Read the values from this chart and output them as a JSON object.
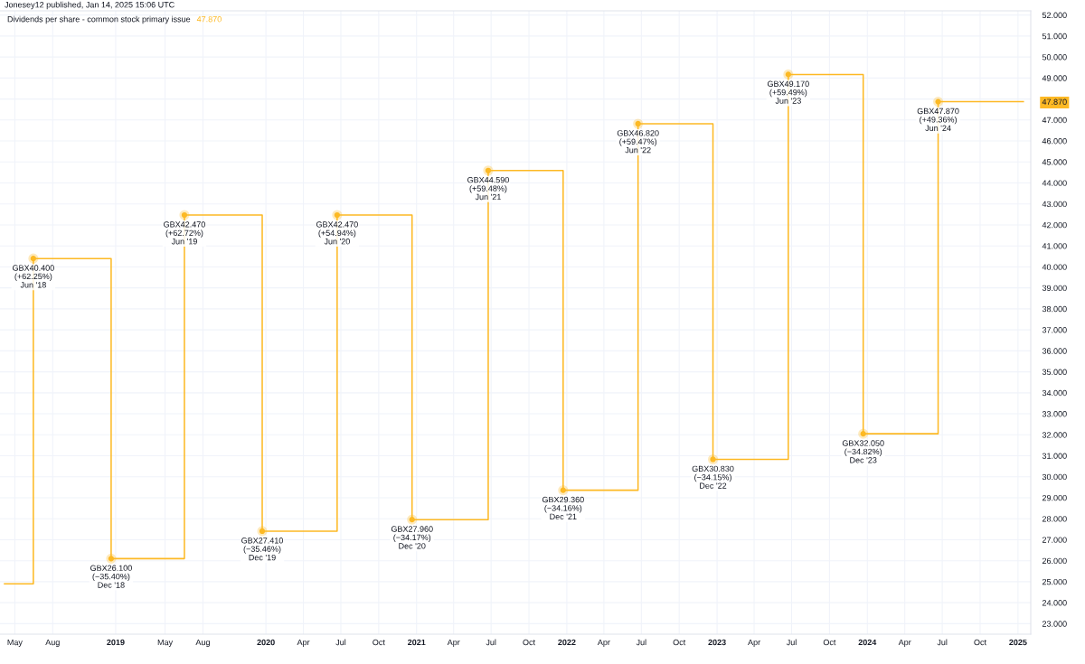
{
  "chart_data": {
    "type": "step",
    "title": "Dividends per share - common stock primary issue",
    "subtitle": "47.870",
    "annotations": [
      "Jonesey12 published, Jan 14, 2025 15:06 UTC"
    ],
    "series": [
      {
        "color": "#fdb924",
        "line_style": "solid",
        "x": [
          "2018-04-06",
          "2018-06-15",
          "2018-12-21",
          "2019-06-17",
          "2019-12-23",
          "2020-06-22",
          "2020-12-21",
          "2021-06-24",
          "2021-12-23",
          "2022-06-23",
          "2022-12-22",
          "2023-06-23",
          "2023-12-22",
          "2024-06-21",
          "2025-01-14"
        ],
        "values": [
          24.9,
          40.4,
          26.1,
          42.47,
          27.41,
          42.47,
          27.96,
          44.59,
          29.36,
          46.82,
          30.83,
          49.17,
          32.05,
          47.87,
          47.87
        ]
      },
      {
        "type": "scatter",
        "color": "#fdb924",
        "marker": "circle",
        "x": [
          "2018-06-15",
          "2018-12-21",
          "2019-06-17",
          "2019-12-23",
          "2020-06-22",
          "2020-12-21",
          "2021-06-24",
          "2021-12-23",
          "2022-06-23",
          "2022-12-22",
          "2023-06-23",
          "2023-12-22",
          "2024-06-21"
        ],
        "values": [
          40.4,
          26.1,
          42.47,
          27.41,
          42.47,
          27.96,
          44.59,
          29.36,
          46.82,
          30.83,
          49.17,
          32.05,
          47.87
        ],
        "value_labels": [
          "GBX40.400\n(+62.25%)\nJun '18",
          "GBX26.100\n(−35.40%)\nDec '18",
          "GBX42.470\n(+62.72%)\nJun '19",
          "GBX27.410\n(−35.46%)\nDec '19",
          "GBX42.470\n(+54.94%)\nJun '20",
          "GBX27.960\n(−34.17%)\nDec '20",
          "GBX44.590\n(+59.48%)\nJun '21",
          "GBX29.360\n(−34.16%)\nDec '21",
          "GBX46.820\n(+59.47%)\nJun '22",
          "GBX30.830\n(−34.15%)\nDec '22",
          "GBX49.170\n(+59.49%)\nJun '23",
          "GBX32.050\n(−34.82%)\nDec '23",
          "GBX47.870\n(+49.36%)\nJun '24"
        ]
      }
    ],
    "xlim": [
      "2018-03-26",
      "2025-02-01"
    ],
    "xticks": [
      {
        "value": "2018-05",
        "label": "May"
      },
      {
        "value": "2018-08",
        "label": "Aug"
      },
      {
        "value": "2019",
        "label": "2019"
      },
      {
        "value": "2019-05",
        "label": "May"
      },
      {
        "value": "2019-08",
        "label": "Aug"
      },
      {
        "value": "2020",
        "label": "2020"
      },
      {
        "value": "2020-04",
        "label": "Apr"
      },
      {
        "value": "2020-07",
        "label": "Jul"
      },
      {
        "value": "2020-10",
        "label": "Oct"
      },
      {
        "value": "2021",
        "label": "2021"
      },
      {
        "value": "2021-04",
        "label": "Apr"
      },
      {
        "value": "2021-07",
        "label": "Jul"
      },
      {
        "value": "2021-10",
        "label": "Oct"
      },
      {
        "value": "2022",
        "label": "2022"
      },
      {
        "value": "2022-04",
        "label": "Apr"
      },
      {
        "value": "2022-07",
        "label": "Jul"
      },
      {
        "value": "2022-10",
        "label": "Oct"
      },
      {
        "value": "2023",
        "label": "2023"
      },
      {
        "value": "2023-04",
        "label": "Apr"
      },
      {
        "value": "2023-07",
        "label": "Jul"
      },
      {
        "value": "2023-10",
        "label": "Oct"
      },
      {
        "value": "2024",
        "label": "2024"
      },
      {
        "value": "2024-04",
        "label": "Apr"
      },
      {
        "value": "2024-07",
        "label": "Jul"
      },
      {
        "value": "2024-10",
        "label": "Oct"
      },
      {
        "value": "2025",
        "label": "2025"
      }
    ],
    "ylim": [
      22.5,
      52.2
    ],
    "yticks": [
      {
        "value": 23,
        "label": "23.000"
      },
      {
        "value": 24,
        "label": "24.000"
      },
      {
        "value": 25,
        "label": "25.000"
      },
      {
        "value": 26,
        "label": "26.000"
      },
      {
        "value": 27,
        "label": "27.000"
      },
      {
        "value": 28,
        "label": "28.000"
      },
      {
        "value": 29,
        "label": "29.000"
      },
      {
        "value": 30,
        "label": "30.000"
      },
      {
        "value": 31,
        "label": "31.000"
      },
      {
        "value": 32,
        "label": "32.000"
      },
      {
        "value": 33,
        "label": "33.000"
      },
      {
        "value": 34,
        "label": "34.000"
      },
      {
        "value": 35,
        "label": "35.000"
      },
      {
        "value": 36,
        "label": "36.000"
      },
      {
        "value": 37,
        "label": "37.000"
      },
      {
        "value": 38,
        "label": "38.000"
      },
      {
        "value": 39,
        "label": "39.000"
      },
      {
        "value": 40,
        "label": "40.000"
      },
      {
        "value": 41,
        "label": "41.000"
      },
      {
        "value": 42,
        "label": "42.000"
      },
      {
        "value": 43,
        "label": "43.000"
      },
      {
        "value": 44,
        "label": "44.000"
      },
      {
        "value": 45,
        "label": "45.000"
      },
      {
        "value": 46,
        "label": "46.000"
      },
      {
        "value": 47,
        "label": "47.000"
      },
      {
        "value": 47.87,
        "label": "47.870"
      },
      {
        "value": 48,
        "label": null
      },
      {
        "value": 49,
        "label": "49.000"
      },
      {
        "value": 50,
        "label": "50.000"
      },
      {
        "value": 51,
        "label": "51.000"
      },
      {
        "value": 52,
        "label": "52.000"
      }
    ],
    "grid": true,
    "legend": false
  }
}
